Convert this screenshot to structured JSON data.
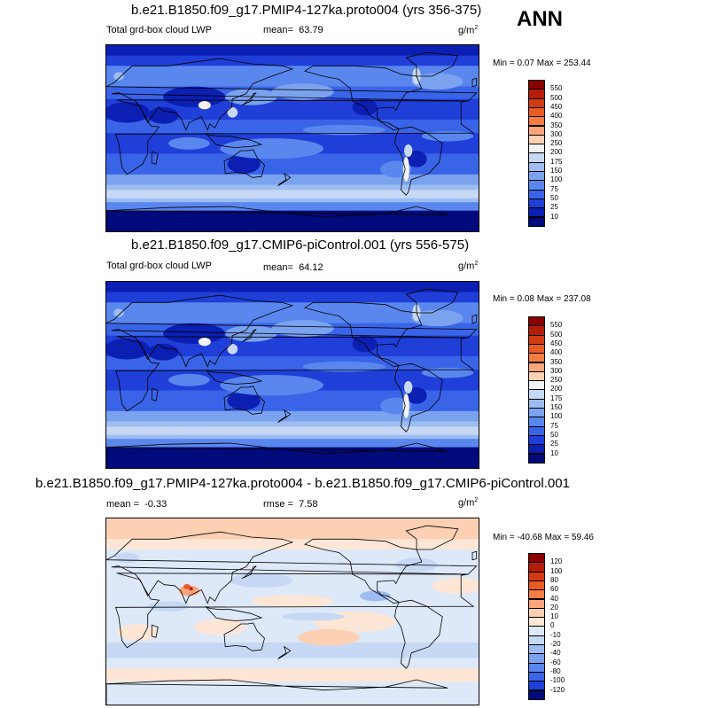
{
  "season": "ANN",
  "unit_base": "g/m",
  "unit_exp": "2",
  "panels": [
    {
      "title": "b.e21.B1850.f09_g17.PMIP4-127ka.proto004 (yrs 356-375)",
      "field": "Total grd-box cloud LWP",
      "mean_label": "mean=",
      "mean": "63.79",
      "minmax": "Min =   0.07 Max = 253.44",
      "levels": [
        "550",
        "500",
        "450",
        "400",
        "350",
        "300",
        "250",
        "200",
        "175",
        "150",
        "100",
        "75",
        "50",
        "25",
        "10"
      ],
      "colors": [
        "#8b0000",
        "#b51d0b",
        "#d23a12",
        "#ea5b22",
        "#f47d43",
        "#fba57c",
        "#fdd0b3",
        "#f2f2f2",
        "#c7d8f4",
        "#9dbdf2",
        "#7aa2ee",
        "#5a87ee",
        "#3a64e8",
        "#1f3fd8",
        "#0b1fb3",
        "#000a7a"
      ],
      "field_type": "lwp"
    },
    {
      "title": "b.e21.B1850.f09_g17.CMIP6-piControl.001 (yrs 556-575)",
      "field": "Total grd-box cloud LWP",
      "mean_label": "mean=",
      "mean": "64.12",
      "minmax": "Min =   0.08 Max = 237.08",
      "levels": [
        "550",
        "500",
        "450",
        "400",
        "350",
        "300",
        "250",
        "200",
        "175",
        "150",
        "100",
        "75",
        "50",
        "25",
        "10"
      ],
      "colors": [
        "#8b0000",
        "#b51d0b",
        "#d23a12",
        "#ea5b22",
        "#f47d43",
        "#fba57c",
        "#fdd0b3",
        "#f2f2f2",
        "#c7d8f4",
        "#9dbdf2",
        "#7aa2ee",
        "#5a87ee",
        "#3a64e8",
        "#1f3fd8",
        "#0b1fb3",
        "#000a7a"
      ],
      "field_type": "lwp"
    },
    {
      "title": "b.e21.B1850.f09_g17.PMIP4-127ka.proto004 - b.e21.B1850.f09_g17.CMIP6-piControl.001",
      "mean_label": "mean =",
      "mean": "-0.33",
      "rmse_label": "rmse =",
      "rmse": "7.58",
      "minmax": "Min = -40.68 Max =  59.46",
      "levels": [
        "120",
        "100",
        "80",
        "60",
        "40",
        "20",
        "10",
        "0",
        "-10",
        "-20",
        "-40",
        "-60",
        "-80",
        "-100",
        "-120"
      ],
      "colors": [
        "#8b0000",
        "#b51d0b",
        "#d23a12",
        "#ea5b22",
        "#f47d43",
        "#fba57c",
        "#fdd0b3",
        "#fde6d6",
        "#dde8f8",
        "#c7d8f4",
        "#9dbdf2",
        "#7aa2ee",
        "#5a87ee",
        "#3a64e8",
        "#1f3fd8",
        "#000a7a"
      ],
      "field_type": "diff"
    }
  ]
}
